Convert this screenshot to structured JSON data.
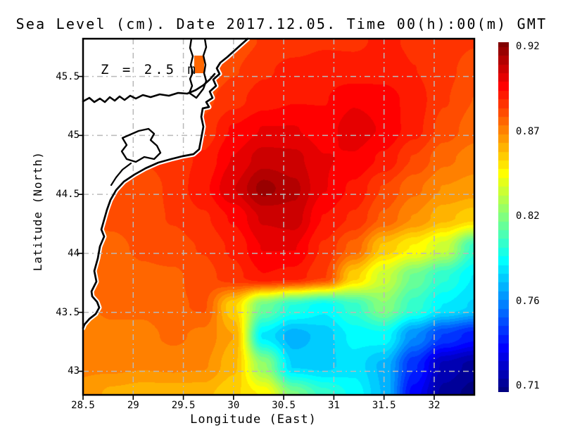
{
  "title": "Sea Level (cm). Date 2017.12.05. Time 00(h):00(m) GMT",
  "annotation": "Z = 2.5 m",
  "axes": {
    "xlabel": "Longitude (East)",
    "ylabel": "Latitude (North)",
    "x_tick_values": [
      28.5,
      29,
      29.5,
      30,
      30.5,
      31,
      31.5,
      32
    ],
    "y_tick_values": [
      43,
      43.5,
      44,
      44.5,
      45,
      45.5
    ]
  },
  "colorbar": {
    "labels": [
      "0.92",
      "0.87",
      "0.82",
      "0.76",
      "0.71"
    ],
    "vmin": 0.708,
    "vmax": 0.924,
    "colormap": "jet"
  },
  "chart_data": {
    "type": "heatmap",
    "title": "Sea Level (cm). Date 2017.12.05. Time 00(h):00(m) GMT",
    "xlabel": "Longitude (East)",
    "ylabel": "Latitude (North)",
    "xlim": [
      28.5,
      32.4
    ],
    "ylim": [
      42.8,
      45.82
    ],
    "value_range": [
      0.708,
      0.924
    ],
    "legend_position": "right-colorbar",
    "grid": "dashed-gray",
    "lons": [
      28.5,
      28.8,
      29.1,
      29.4,
      29.7,
      30.0,
      30.3,
      30.6,
      30.9,
      31.2,
      31.5,
      31.8,
      32.1,
      32.4
    ],
    "lats": [
      45.8,
      45.55,
      45.3,
      45.05,
      44.8,
      44.55,
      44.3,
      44.05,
      43.8,
      43.55,
      43.3,
      43.05,
      42.8
    ],
    "values": [
      [
        0.878,
        0.878,
        0.878,
        0.878,
        0.878,
        0.88,
        0.884,
        0.886,
        0.888,
        0.888,
        0.89,
        0.888,
        0.886,
        0.884
      ],
      [
        0.878,
        0.878,
        0.878,
        0.878,
        0.878,
        0.883,
        0.888,
        0.891,
        0.892,
        0.891,
        0.892,
        0.889,
        0.885,
        0.881
      ],
      [
        0.88,
        0.88,
        0.88,
        0.88,
        0.882,
        0.887,
        0.892,
        0.894,
        0.894,
        0.899,
        0.897,
        0.892,
        0.884,
        0.878
      ],
      [
        0.882,
        0.882,
        0.882,
        0.883,
        0.885,
        0.895,
        0.9,
        0.9,
        0.897,
        0.903,
        0.899,
        0.891,
        0.881,
        0.875
      ],
      [
        0.884,
        0.884,
        0.884,
        0.886,
        0.89,
        0.9,
        0.908,
        0.907,
        0.9,
        0.899,
        0.893,
        0.883,
        0.874,
        0.87
      ],
      [
        0.88,
        0.88,
        0.88,
        0.885,
        0.893,
        0.905,
        0.918,
        0.912,
        0.9,
        0.893,
        0.883,
        0.874,
        0.867,
        0.865
      ],
      [
        0.878,
        0.879,
        0.881,
        0.884,
        0.888,
        0.895,
        0.906,
        0.908,
        0.894,
        0.888,
        0.877,
        0.867,
        0.858,
        0.853
      ],
      [
        0.876,
        0.877,
        0.879,
        0.881,
        0.884,
        0.89,
        0.9,
        0.9,
        0.888,
        0.876,
        0.855,
        0.845,
        0.832,
        0.8
      ],
      [
        0.874,
        0.875,
        0.877,
        0.877,
        0.881,
        0.887,
        0.894,
        0.892,
        0.884,
        0.853,
        0.832,
        0.812,
        0.798,
        0.786
      ],
      [
        0.872,
        0.874,
        0.874,
        0.877,
        0.879,
        0.852,
        0.812,
        0.796,
        0.788,
        0.8,
        0.818,
        0.8,
        0.786,
        0.78
      ],
      [
        0.87,
        0.871,
        0.871,
        0.874,
        0.871,
        0.862,
        0.785,
        0.772,
        0.778,
        0.788,
        0.79,
        0.765,
        0.748,
        0.74
      ],
      [
        0.868,
        0.869,
        0.868,
        0.869,
        0.868,
        0.858,
        0.82,
        0.78,
        0.779,
        0.784,
        0.774,
        0.744,
        0.72,
        0.714
      ],
      [
        0.866,
        0.86,
        0.858,
        0.858,
        0.858,
        0.852,
        0.845,
        0.815,
        0.8,
        0.79,
        0.775,
        0.735,
        0.714,
        0.708
      ]
    ]
  }
}
